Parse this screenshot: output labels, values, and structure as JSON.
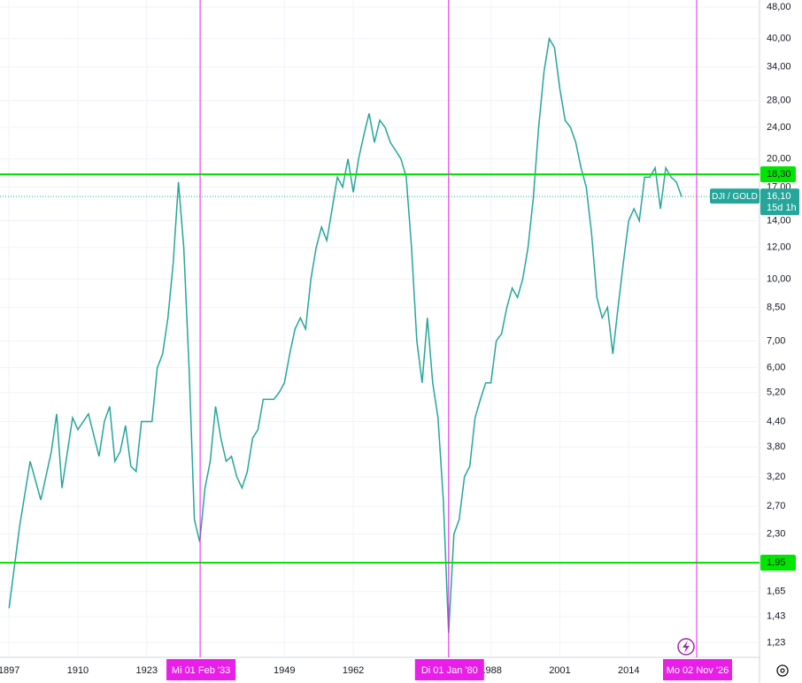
{
  "chart_data": {
    "type": "line",
    "log_scale": true,
    "grid": true,
    "x": [
      1897,
      1899,
      1901,
      1903,
      1905,
      1906,
      1907,
      1909,
      1910,
      1912,
      1914,
      1915,
      1916,
      1917,
      1918,
      1919,
      1920,
      1921,
      1922,
      1924,
      1925,
      1926,
      1927,
      1928,
      1929,
      1930,
      1931,
      1932,
      1933,
      1934,
      1935,
      1936,
      1937,
      1938,
      1939,
      1940,
      1941,
      1942,
      1943,
      1944,
      1945,
      1946,
      1947,
      1948,
      1949,
      1950,
      1951,
      1952,
      1953,
      1954,
      1955,
      1956,
      1957,
      1958,
      1959,
      1960,
      1961,
      1962,
      1963,
      1964,
      1965,
      1966,
      1967,
      1968,
      1969,
      1970,
      1971,
      1972,
      1973,
      1974,
      1975,
      1976,
      1977,
      1978,
      1979,
      1980,
      1981,
      1982,
      1983,
      1984,
      1985,
      1986,
      1987,
      1988,
      1989,
      1990,
      1991,
      1992,
      1993,
      1994,
      1995,
      1996,
      1997,
      1998,
      1999,
      2000,
      2001,
      2002,
      2003,
      2004,
      2005,
      2006,
      2007,
      2008,
      2009,
      2010,
      2011,
      2012,
      2013,
      2014,
      2015,
      2016,
      2017,
      2018,
      2019,
      2020,
      2021,
      2022,
      2023,
      2024
    ],
    "series": [
      {
        "name": "DJI / GOLD",
        "color": "#26a69a",
        "values": [
          1.5,
          2.4,
          3.5,
          2.8,
          3.7,
          4.6,
          3.0,
          4.5,
          4.2,
          4.6,
          3.6,
          4.4,
          4.8,
          3.5,
          3.7,
          4.3,
          3.4,
          3.3,
          4.4,
          4.4,
          6.0,
          6.5,
          8.0,
          11,
          17.5,
          12,
          6,
          2.5,
          2.2,
          3.0,
          3.5,
          4.8,
          4.0,
          3.5,
          3.6,
          3.2,
          3.0,
          3.3,
          4.0,
          4.2,
          5.0,
          5.0,
          5.0,
          5.2,
          5.5,
          6.5,
          7.5,
          8.0,
          7.5,
          10,
          12,
          13.5,
          12.5,
          15,
          18,
          17,
          20,
          16.5,
          20,
          23,
          26,
          22,
          25,
          24,
          22,
          21,
          20,
          18,
          12,
          7,
          5.5,
          8,
          5.5,
          4.5,
          2.8,
          1.3,
          2.3,
          2.5,
          3.2,
          3.4,
          4.5,
          5.0,
          5.5,
          5.5,
          7.0,
          7.3,
          8.5,
          9.5,
          9.0,
          10,
          12,
          16,
          24,
          33,
          40,
          38,
          30,
          25,
          24,
          22,
          19,
          17,
          13,
          9,
          8,
          8.5,
          6.5,
          8.5,
          11,
          14,
          15,
          14,
          18,
          18,
          19,
          15,
          19,
          18,
          17.5,
          16.1
        ]
      }
    ],
    "xlim": [
      1895.3,
      2038.7
    ],
    "ylim": [
      1.13,
      50
    ],
    "xticks": [
      1897,
      1910,
      1923,
      1949,
      1962,
      1988,
      2001,
      2014
    ],
    "yticks": [
      {
        "value": 48,
        "label": "48,00"
      },
      {
        "value": 40,
        "label": "40,00"
      },
      {
        "value": 34,
        "label": "34,00"
      },
      {
        "value": 28,
        "label": "28,00"
      },
      {
        "value": 24,
        "label": "24,00"
      },
      {
        "value": 20,
        "label": "20,00"
      },
      {
        "value": 17,
        "label": "17,00"
      },
      {
        "value": 14,
        "label": "14,00"
      },
      {
        "value": 12,
        "label": "12,00"
      },
      {
        "value": 10,
        "label": "10,00"
      },
      {
        "value": 8.5,
        "label": "8,50"
      },
      {
        "value": 7,
        "label": "7,00"
      },
      {
        "value": 6,
        "label": "6,00"
      },
      {
        "value": 5.2,
        "label": "5,20"
      },
      {
        "value": 4.4,
        "label": "4,40"
      },
      {
        "value": 3.8,
        "label": "3,80"
      },
      {
        "value": 3.2,
        "label": "3,20"
      },
      {
        "value": 2.7,
        "label": "2,70"
      },
      {
        "value": 2.3,
        "label": "2,30"
      },
      {
        "value": 1.95,
        "label": "1,95"
      },
      {
        "value": 1.65,
        "label": "1,65"
      },
      {
        "value": 1.43,
        "label": "1,43"
      },
      {
        "value": 1.23,
        "label": "1,23"
      }
    ],
    "hlines": [
      {
        "value": 18.3,
        "label": "18,30",
        "color": "#00e600"
      },
      {
        "value": 1.95,
        "label": "1,95",
        "color": "#00e600"
      }
    ],
    "vlines": [
      {
        "value": 1933.085,
        "label": "Mi 01 Feb '33",
        "color": "#e91ee9"
      },
      {
        "value": 1980.0,
        "label": "Di 01 Jan '80",
        "color": "#e91ee9"
      },
      {
        "value": 2026.836,
        "label": "Mo 02 Nov '26",
        "color": "#e91ee9"
      }
    ],
    "last_value": {
      "value": 16.1,
      "label": "16,10"
    },
    "countdown": "15d 1h"
  }
}
